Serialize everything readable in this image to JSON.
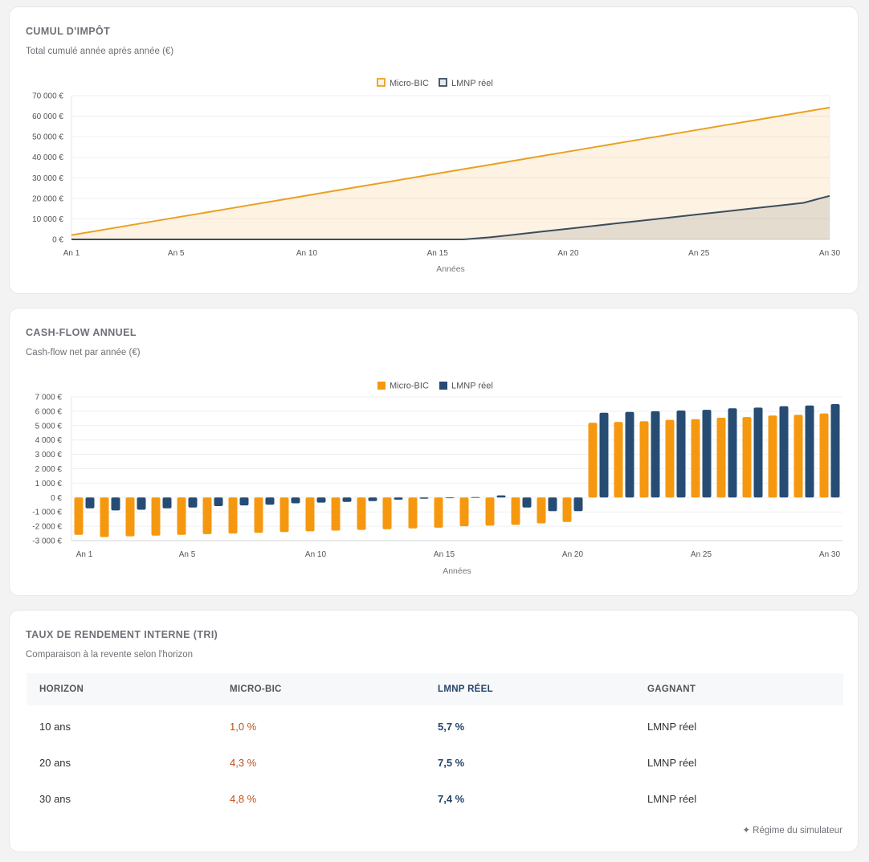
{
  "colors": {
    "micro": "#f6980f",
    "micro_line": "#e9a122",
    "lmnp": "#264c74",
    "lmnp_line": "#3b4d5e"
  },
  "card1": {
    "title": "CUMUL D'IMPÔT",
    "subtitle": "Total cumulé année après année (€)"
  },
  "card2": {
    "title": "CASH-FLOW ANNUEL",
    "subtitle": "Cash-flow net par année (€)"
  },
  "card3": {
    "title": "TAUX DE RENDEMENT INTERNE (TRI)",
    "subtitle": "Comparaison à la revente selon l'horizon",
    "headers": {
      "horizon": "HORIZON",
      "micro": "MICRO-BIC",
      "lmnp": "LMNP RÉEL",
      "winner": "GAGNANT"
    },
    "rows": [
      {
        "horizon": "10 ans",
        "micro": "1,0 %",
        "lmnp": "5,7 %",
        "winner": "LMNP réel"
      },
      {
        "horizon": "20 ans",
        "micro": "4,3 %",
        "lmnp": "7,5 %",
        "winner": "LMNP réel"
      },
      {
        "horizon": "30 ans",
        "micro": "4,8 %",
        "lmnp": "7,4 %",
        "winner": "LMNP réel"
      }
    ],
    "footnote": "✦ Régime du simulateur"
  },
  "chart_data": [
    {
      "type": "area",
      "title": "CUMUL D'IMPÔT",
      "subtitle": "Total cumulé année après année (€)",
      "xlabel": "Années",
      "ylabel": "",
      "ylim": [
        0,
        70000
      ],
      "y_ticks": [
        0,
        10000,
        20000,
        30000,
        40000,
        50000,
        60000,
        70000
      ],
      "y_tick_labels": [
        "0 €",
        "10 000 €",
        "20 000 €",
        "30 000 €",
        "40 000 €",
        "50 000 €",
        "60 000 €",
        "70 000 €"
      ],
      "x_tick_labels": [
        "An 1",
        "An 5",
        "An 10",
        "An 15",
        "An 20",
        "An 25",
        "An 30"
      ],
      "x_tick_years": [
        1,
        5,
        10,
        15,
        20,
        25,
        30
      ],
      "x": [
        1,
        2,
        3,
        4,
        5,
        6,
        7,
        8,
        9,
        10,
        11,
        12,
        13,
        14,
        15,
        16,
        17,
        18,
        19,
        20,
        21,
        22,
        23,
        24,
        25,
        26,
        27,
        28,
        29,
        30
      ],
      "legend": "top-center",
      "grid": true,
      "series": [
        {
          "name": "Micro-BIC",
          "values": [
            2100,
            4240,
            6380,
            8520,
            10660,
            12800,
            14940,
            17080,
            19220,
            21360,
            23500,
            25640,
            27780,
            29920,
            32060,
            34200,
            36340,
            38480,
            40620,
            42760,
            44900,
            47040,
            49180,
            51320,
            53460,
            55600,
            57740,
            59880,
            62020,
            64160
          ]
        },
        {
          "name": "LMNP réel",
          "values": [
            0,
            0,
            0,
            0,
            0,
            0,
            0,
            0,
            0,
            0,
            0,
            0,
            0,
            0,
            0,
            0,
            1000,
            2400,
            3800,
            5200,
            6600,
            8000,
            9400,
            10800,
            12200,
            13600,
            15000,
            16400,
            17800,
            21200
          ]
        }
      ]
    },
    {
      "type": "bar",
      "title": "CASH-FLOW ANNUEL",
      "subtitle": "Cash-flow net par année (€)",
      "xlabel": "Années",
      "ylabel": "",
      "ylim": [
        -3000,
        7000
      ],
      "y_ticks": [
        -3000,
        -2000,
        -1000,
        0,
        1000,
        2000,
        3000,
        4000,
        5000,
        6000,
        7000
      ],
      "y_tick_labels": [
        "-3 000 €",
        "-2 000 €",
        "-1 000 €",
        "0 €",
        "1 000 €",
        "2 000 €",
        "3 000 €",
        "4 000 €",
        "5 000 €",
        "6 000 €",
        "7 000 €"
      ],
      "x_tick_labels": [
        "An 1",
        "An 5",
        "An 10",
        "An 15",
        "An 20",
        "An 25",
        "An 30"
      ],
      "x_tick_years": [
        1,
        5,
        10,
        15,
        20,
        25,
        30
      ],
      "categories": [
        "An 1",
        "An 2",
        "An 3",
        "An 4",
        "An 5",
        "An 6",
        "An 7",
        "An 8",
        "An 9",
        "An 10",
        "An 11",
        "An 12",
        "An 13",
        "An 14",
        "An 15",
        "An 16",
        "An 17",
        "An 18",
        "An 19",
        "An 20",
        "An 21",
        "An 22",
        "An 23",
        "An 24",
        "An 25",
        "An 26",
        "An 27",
        "An 28",
        "An 29",
        "An 30"
      ],
      "legend": "top-center",
      "grid": true,
      "series": [
        {
          "name": "Micro-BIC",
          "values": [
            -2600,
            -2750,
            -2700,
            -2650,
            -2600,
            -2550,
            -2500,
            -2450,
            -2400,
            -2350,
            -2300,
            -2250,
            -2200,
            -2150,
            -2100,
            -2000,
            -1950,
            -1900,
            -1800,
            -1700,
            5200,
            5250,
            5300,
            5400,
            5450,
            5550,
            5600,
            5700,
            5750,
            5850
          ]
        },
        {
          "name": "LMNP réel",
          "values": [
            -750,
            -900,
            -850,
            -750,
            -700,
            -600,
            -550,
            -500,
            -400,
            -350,
            -300,
            -250,
            -150,
            -80,
            -30,
            30,
            150,
            -700,
            -950,
            -950,
            5900,
            5950,
            6000,
            6050,
            6100,
            6200,
            6250,
            6350,
            6400,
            6500
          ]
        }
      ]
    }
  ]
}
